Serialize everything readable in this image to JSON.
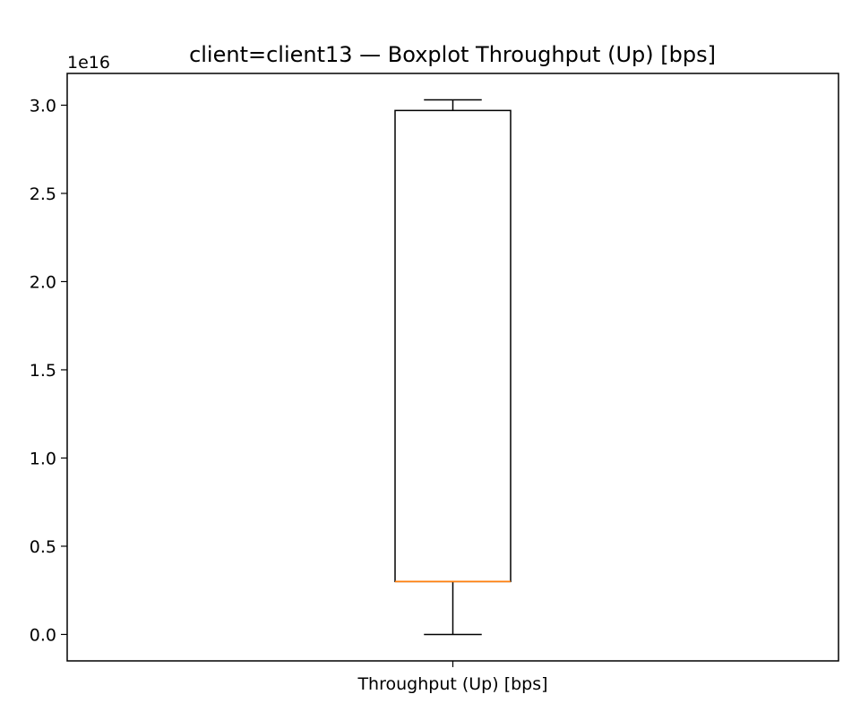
{
  "chart_data": {
    "type": "boxplot",
    "title": "client=client13 — Boxplot Throughput (Up) [bps]",
    "xlabel": "",
    "ylabel": "",
    "offset_label": "1e16",
    "scale_exponent": 16,
    "categories": [
      "Throughput (Up) [bps]"
    ],
    "boxes": [
      {
        "category": "Throughput (Up) [bps]",
        "whisker_low": 0.0,
        "q1": 0.3,
        "median": 0.3,
        "q3": 2.97,
        "whisker_high": 3.03
      }
    ],
    "y_ticks": [
      "0.0",
      "0.5",
      "1.0",
      "1.5",
      "2.0",
      "2.5",
      "3.0"
    ],
    "ylim": [
      -0.15,
      3.18
    ],
    "grid": false,
    "colors": {
      "box": "#000000",
      "median": "#ff7f0e",
      "axes": "#000000",
      "background": "#ffffff"
    }
  }
}
